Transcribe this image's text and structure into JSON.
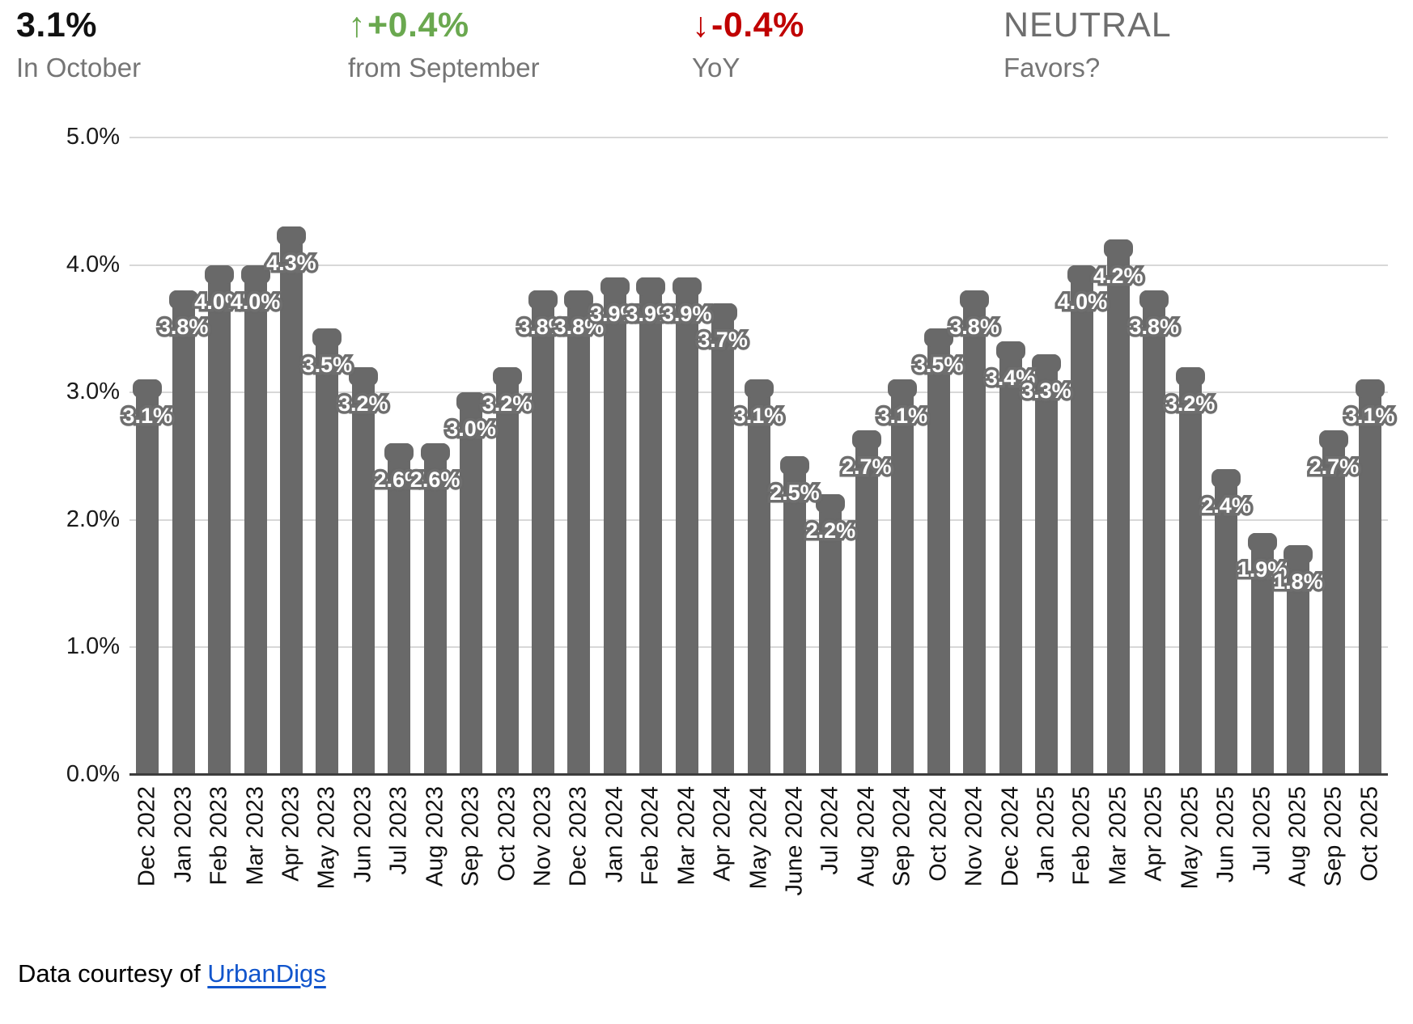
{
  "header": {
    "stats": [
      {
        "value": "3.1%",
        "label": "In October",
        "style": "black"
      },
      {
        "value": "+0.4%",
        "arrow": "↑",
        "label": "from September",
        "style": "green"
      },
      {
        "value": "-0.4%",
        "arrow": "↓",
        "label": "YoY",
        "style": "red"
      },
      {
        "value": "NEUTRAL",
        "label": "Favors?",
        "style": "neutral"
      }
    ]
  },
  "chart_data": {
    "type": "bar",
    "title": "",
    "xlabel": "",
    "ylabel": "",
    "ylim": [
      0,
      5
    ],
    "yticks": [
      "0.0%",
      "1.0%",
      "2.0%",
      "3.0%",
      "4.0%",
      "5.0%"
    ],
    "grid": true,
    "categories": [
      "Dec 2022",
      "Jan 2023",
      "Feb 2023",
      "Mar 2023",
      "Apr 2023",
      "May 2023",
      "Jun 2023",
      "Jul 2023",
      "Aug 2023",
      "Sep 2023",
      "Oct 2023",
      "Nov 2023",
      "Dec 2023",
      "Jan 2024",
      "Feb 2024",
      "Mar 2024",
      "Apr 2024",
      "May 2024",
      "June 2024",
      "Jul 2024",
      "Aug 2024",
      "Sep 2024",
      "Oct 2024",
      "Nov 2024",
      "Dec 2024",
      "Jan 2025",
      "Feb 2025",
      "Mar 2025",
      "Apr 2025",
      "May 2025",
      "Jun 2025",
      "Jul 2025",
      "Aug 2025",
      "Sep 2025",
      "Oct 2025"
    ],
    "values": [
      3.1,
      3.8,
      4.0,
      4.0,
      4.3,
      3.5,
      3.2,
      2.6,
      2.6,
      3.0,
      3.2,
      3.8,
      3.8,
      3.9,
      3.9,
      3.9,
      3.7,
      3.1,
      2.5,
      2.2,
      2.7,
      3.1,
      3.5,
      3.8,
      3.4,
      3.3,
      4.0,
      4.2,
      3.8,
      3.2,
      2.4,
      1.9,
      1.8,
      2.7,
      3.1
    ],
    "bar_value_label_suffix": "%"
  },
  "colors": {
    "bar_gray": "#696969",
    "label_halo_gray": "#6e6e6e",
    "grid_gray": "#d8d8d8",
    "axis_dark": "#3c3c3c",
    "accent_green": "#6aa84f",
    "accent_red": "#c00000",
    "muted_text": "#757575",
    "link_blue": "#1155cc"
  },
  "footer": {
    "text": "Data courtesy of ",
    "link_label": "UrbanDigs"
  }
}
